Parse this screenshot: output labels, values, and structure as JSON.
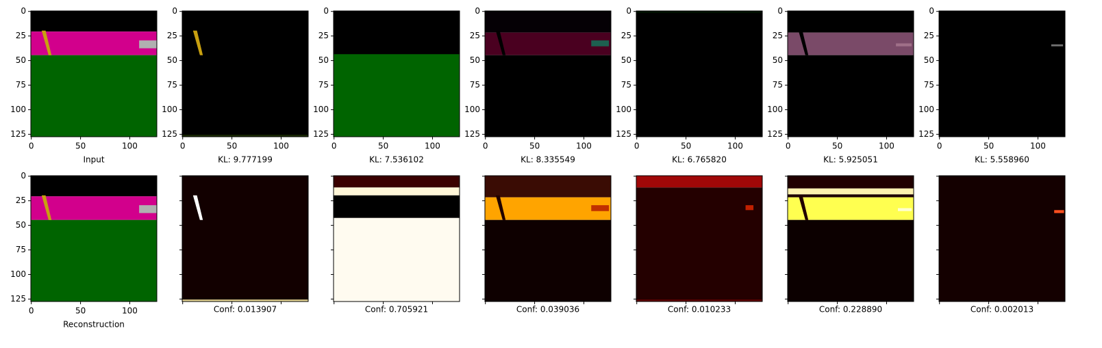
{
  "axes": {
    "xticks": [
      0,
      50,
      100
    ],
    "yticks": [
      0,
      25,
      50,
      75,
      100,
      125
    ]
  },
  "top": [
    {
      "caption": "Input"
    },
    {
      "caption": "KL: 9.777199"
    },
    {
      "caption": "KL: 7.536102"
    },
    {
      "caption": "KL: 8.335549"
    },
    {
      "caption": "KL: 6.765820"
    },
    {
      "caption": "KL: 5.925051"
    },
    {
      "caption": "KL: 5.558960"
    }
  ],
  "bottom": [
    {
      "caption": "Reconstruction"
    },
    {
      "caption": "Conf: 0.013907"
    },
    {
      "caption": "Conf: 0.705921"
    },
    {
      "caption": "Conf: 0.039036"
    },
    {
      "caption": "Conf: 0.010233"
    },
    {
      "caption": "Conf: 0.228890"
    },
    {
      "caption": "Conf: 0.002013"
    }
  ]
}
